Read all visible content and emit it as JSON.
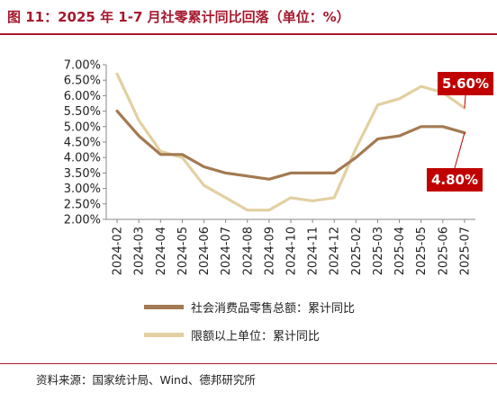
{
  "header": {
    "title": "图 11：2025 年 1-7 月社零累计同比回落（单位：%）"
  },
  "chart_data": {
    "type": "line",
    "title": "",
    "xlabel": "",
    "ylabel": "",
    "x": [
      "2024-02",
      "2024-03",
      "2024-04",
      "2024-05",
      "2024-06",
      "2024-07",
      "2024-08",
      "2024-09",
      "2024-10",
      "2024-11",
      "2024-12",
      "2025-02",
      "2025-03",
      "2025-04",
      "2025-05",
      "2025-06",
      "2025-07"
    ],
    "ylim": [
      2.0,
      7.0
    ],
    "yticks": [
      "2.00%",
      "2.50%",
      "3.00%",
      "3.50%",
      "4.00%",
      "4.50%",
      "5.00%",
      "5.50%",
      "6.00%",
      "6.50%",
      "7.00%"
    ],
    "grid": false,
    "legend_position": "bottom",
    "series": [
      {
        "name": "社会消费品零售总额：累计同比",
        "color": "#a37a52",
        "values": [
          5.5,
          4.7,
          4.1,
          4.1,
          3.7,
          3.5,
          3.4,
          3.3,
          3.5,
          3.5,
          3.5,
          4.0,
          4.6,
          4.7,
          5.0,
          5.0,
          4.8
        ]
      },
      {
        "name": "限额以上单位：累计同比",
        "color": "#e2d0a2",
        "values": [
          6.7,
          5.2,
          4.2,
          4.0,
          3.1,
          2.7,
          2.3,
          2.3,
          2.7,
          2.6,
          2.7,
          4.3,
          5.7,
          5.9,
          6.3,
          6.1,
          5.6
        ]
      }
    ],
    "annotations": [
      {
        "text": "5.60%",
        "series": 1,
        "x": "2025-07",
        "color": "#c00000"
      },
      {
        "text": "4.80%",
        "series": 0,
        "x": "2025-07",
        "color": "#c00000"
      }
    ]
  },
  "footer": {
    "source": "资料来源：国家统计局、Wind、德邦研究所"
  }
}
